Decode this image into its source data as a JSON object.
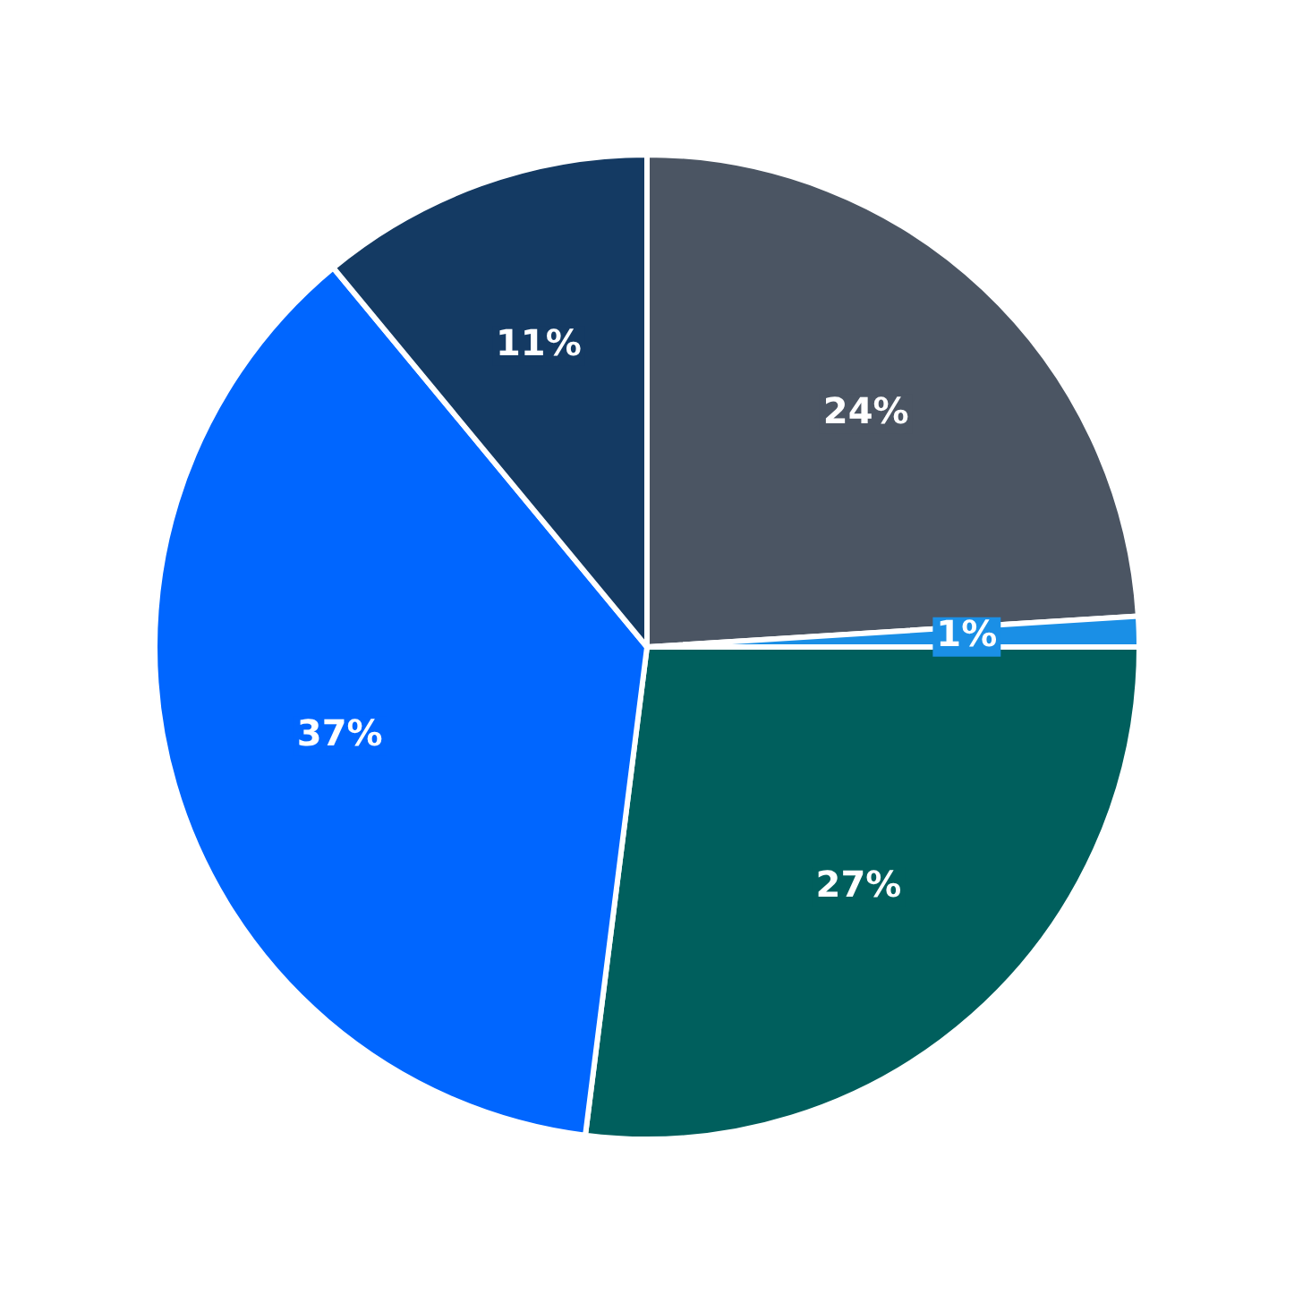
{
  "chart_data": {
    "type": "pie",
    "categories": [
      null,
      null,
      null,
      null,
      null
    ],
    "values": [
      24,
      1,
      27,
      37,
      11
    ],
    "value_labels": [
      "24%",
      "1%",
      "27%",
      "37%",
      "11%"
    ],
    "colors": [
      "#4b5563",
      "#1a8fe6",
      "#005f5d",
      "#0066ff",
      "#143a63"
    ],
    "legend": false
  }
}
